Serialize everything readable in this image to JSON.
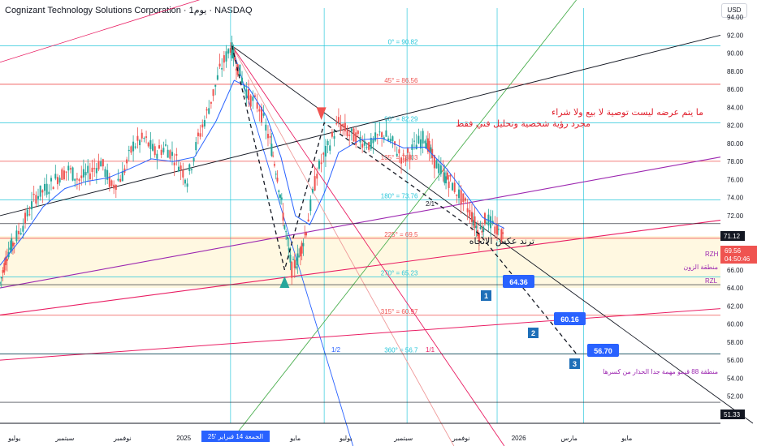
{
  "header": {
    "title": "Cognizant Technology Solutions Corporation · 1يوم · NASDAQ",
    "currency": "USD"
  },
  "colors": {
    "up": "#26a69a",
    "down": "#ef5350",
    "ma": "#2962ff",
    "fib": "#00bcd4",
    "gann": "#ef9a9a",
    "zone": "#fff8e1",
    "red_line": "#e91e63",
    "purple_line": "#9c27b0"
  },
  "notes": [
    "ما يتم عرضه ليست توصية  لا بيع ولا شراء",
    "مجرد رؤية شخصية وتحليل فني  فقط"
  ],
  "trend_label": "ترند عكس الاتجاه",
  "zone_label": "منطقة الزون",
  "zone_top_tag": "RZH",
  "zone_bottom_tag": "RZL",
  "support_label": "منطقة 88 قيمو مهمة جدا الحذار من كسرها",
  "gann_ratio_labels": [
    "2/1",
    "1/1",
    "1/2"
  ],
  "fib_levels": [
    {
      "label": "0° = 90.82",
      "value": 90.82
    },
    {
      "label": "45° = 86.56",
      "value": 86.56
    },
    {
      "label": "90° = 82.29",
      "value": 82.29
    },
    {
      "label": "135° = 78.03",
      "value": 78.03
    },
    {
      "label": "180° = 73.76",
      "value": 73.76
    },
    {
      "label": "225° = 69.5",
      "value": 69.5
    },
    {
      "label": "270° = 65.23",
      "value": 65.23
    },
    {
      "label": "315° = 60.97",
      "value": 60.97
    },
    {
      "label": "360° = 56.7",
      "value": 56.7
    }
  ],
  "targets": [
    {
      "n": "1",
      "value": "64.36"
    },
    {
      "n": "2",
      "value": "60.16"
    },
    {
      "n": "3",
      "value": "56.70"
    }
  ],
  "price_tags": {
    "last": "69.56",
    "countdown": "04:50:46",
    "level_71": "71.12",
    "level_51": "51.33"
  },
  "date_highlight": "الجمعة 14 فبراير '25",
  "chart_data": {
    "type": "candlestick",
    "ylim": [
      49,
      95
    ],
    "y_ticks": [
      50,
      52,
      54,
      56,
      58,
      60,
      62,
      64,
      66,
      68,
      70,
      72,
      74,
      76,
      78,
      80,
      82,
      84,
      86,
      88,
      90,
      92,
      94
    ],
    "x_ticks": [
      {
        "label": "يوليو",
        "x": 0.02
      },
      {
        "label": "سبتمبر",
        "x": 0.09
      },
      {
        "label": "نوفمبر",
        "x": 0.17
      },
      {
        "label": "2025",
        "x": 0.255
      },
      {
        "label": "مايو",
        "x": 0.41
      },
      {
        "label": "يوليو",
        "x": 0.48
      },
      {
        "label": "سبتمبر",
        "x": 0.56
      },
      {
        "label": "نوفمبر",
        "x": 0.64
      },
      {
        "label": "2026",
        "x": 0.72
      },
      {
        "label": "مارس",
        "x": 0.79
      },
      {
        "label": "مايو",
        "x": 0.87
      }
    ],
    "price_path": [
      [
        0.0,
        64.5
      ],
      [
        0.01,
        67.8
      ],
      [
        0.02,
        69.2
      ],
      [
        0.035,
        71.5
      ],
      [
        0.05,
        74.2
      ],
      [
        0.065,
        75.0
      ],
      [
        0.08,
        76.3
      ],
      [
        0.095,
        77.1
      ],
      [
        0.11,
        76.0
      ],
      [
        0.125,
        76.8
      ],
      [
        0.14,
        78.0
      ],
      [
        0.155,
        75.2
      ],
      [
        0.17,
        76.5
      ],
      [
        0.185,
        79.8
      ],
      [
        0.2,
        80.5
      ],
      [
        0.215,
        79.0
      ],
      [
        0.23,
        79.6
      ],
      [
        0.245,
        78.2
      ],
      [
        0.26,
        76.0
      ],
      [
        0.275,
        80.5
      ],
      [
        0.29,
        84.0
      ],
      [
        0.305,
        88.0
      ],
      [
        0.32,
        90.8
      ],
      [
        0.33,
        88.5
      ],
      [
        0.345,
        85.2
      ],
      [
        0.36,
        84.0
      ],
      [
        0.375,
        80.2
      ],
      [
        0.385,
        76.5
      ],
      [
        0.395,
        71.0
      ],
      [
        0.405,
        66.0
      ],
      [
        0.415,
        67.5
      ],
      [
        0.425,
        70.5
      ],
      [
        0.44,
        76.8
      ],
      [
        0.455,
        79.5
      ],
      [
        0.47,
        82.3
      ],
      [
        0.485,
        81.0
      ],
      [
        0.5,
        80.5
      ],
      [
        0.515,
        79.8
      ],
      [
        0.53,
        81.2
      ],
      [
        0.545,
        80.0
      ],
      [
        0.56,
        78.2
      ],
      [
        0.575,
        79.6
      ],
      [
        0.59,
        80.8
      ],
      [
        0.6,
        78.5
      ],
      [
        0.615,
        76.5
      ],
      [
        0.625,
        75.8
      ],
      [
        0.64,
        74.0
      ],
      [
        0.655,
        72.0
      ],
      [
        0.665,
        70.0
      ],
      [
        0.675,
        71.8
      ],
      [
        0.69,
        70.2
      ],
      [
        0.7,
        69.56
      ]
    ],
    "ma_path": [
      [
        0.0,
        66.5
      ],
      [
        0.03,
        69.5
      ],
      [
        0.06,
        73.0
      ],
      [
        0.09,
        75.0
      ],
      [
        0.12,
        75.8
      ],
      [
        0.15,
        76.2
      ],
      [
        0.18,
        77.2
      ],
      [
        0.21,
        78.3
      ],
      [
        0.24,
        78.0
      ],
      [
        0.27,
        78.5
      ],
      [
        0.3,
        82.5
      ],
      [
        0.325,
        87.0
      ],
      [
        0.345,
        86.2
      ],
      [
        0.37,
        83.0
      ],
      [
        0.39,
        78.5
      ],
      [
        0.41,
        72.0
      ],
      [
        0.43,
        71.0
      ],
      [
        0.45,
        74.5
      ],
      [
        0.47,
        79.0
      ],
      [
        0.5,
        80.4
      ],
      [
        0.53,
        80.6
      ],
      [
        0.56,
        79.5
      ],
      [
        0.59,
        79.6
      ],
      [
        0.62,
        77.2
      ],
      [
        0.65,
        74.0
      ],
      [
        0.67,
        71.8
      ],
      [
        0.7,
        70.6
      ]
    ],
    "wave_path": [
      [
        0.322,
        90.82
      ],
      [
        0.395,
        66.0
      ],
      [
        0.45,
        82.3
      ],
      [
        0.665,
        70.0
      ],
      [
        0.8,
        56.7
      ]
    ]
  }
}
